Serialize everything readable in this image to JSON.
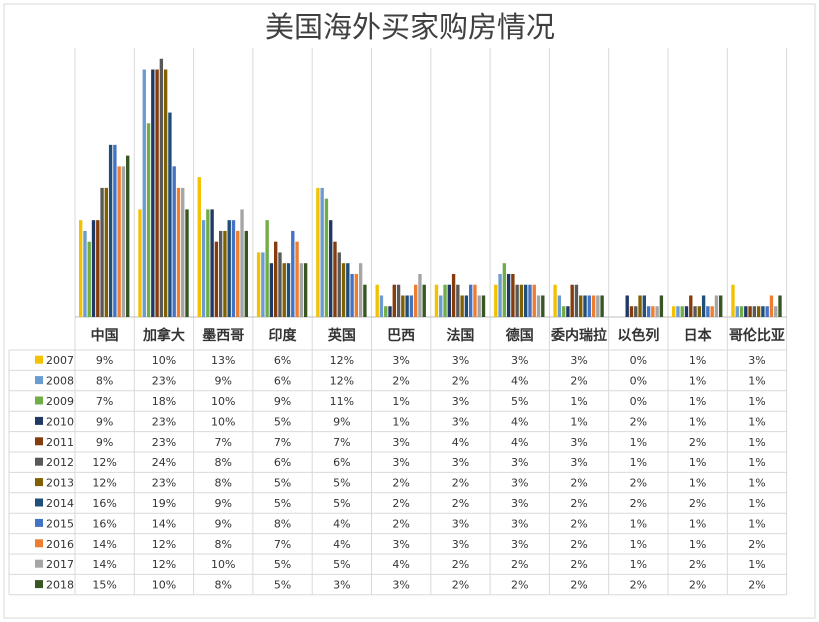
{
  "chart_data": {
    "type": "bar",
    "title": "美国海外买家购房情况",
    "categories": [
      "中国",
      "加拿大",
      "墨西哥",
      "印度",
      "英国",
      "巴西",
      "法国",
      "德国",
      "委内瑞拉",
      "以色列",
      "日本",
      "哥伦比亚"
    ],
    "grid": "vertical category separators and data table with legend keys",
    "series": [
      {
        "name": "2007",
        "color": "#f2c100",
        "values": [
          9,
          10,
          13,
          6,
          12,
          3,
          3,
          3,
          3,
          0,
          1,
          3
        ],
        "labels": [
          "9%",
          "10%",
          "13%",
          "6%",
          "12%",
          "3%",
          "3%",
          "3%",
          "3%",
          "0%",
          "1%",
          "3%"
        ]
      },
      {
        "name": "2008",
        "color": "#6a9bd1",
        "values": [
          8,
          23,
          9,
          6,
          12,
          2,
          2,
          4,
          2,
          0,
          1,
          1
        ],
        "labels": [
          "8%",
          "23%",
          "9%",
          "6%",
          "12%",
          "2%",
          "2%",
          "4%",
          "2%",
          "0%",
          "1%",
          "1%"
        ]
      },
      {
        "name": "2009",
        "color": "#70ad47",
        "values": [
          7,
          18,
          10,
          9,
          11,
          1,
          3,
          5,
          1,
          0,
          1,
          1
        ],
        "labels": [
          "7%",
          "18%",
          "10%",
          "9%",
          "11%",
          "1%",
          "3%",
          "5%",
          "1%",
          "0%",
          "1%",
          "1%"
        ]
      },
      {
        "name": "2010",
        "color": "#203864",
        "values": [
          9,
          23,
          10,
          5,
          9,
          1,
          3,
          4,
          1,
          2,
          1,
          1
        ],
        "labels": [
          "9%",
          "23%",
          "10%",
          "5%",
          "9%",
          "1%",
          "3%",
          "4%",
          "1%",
          "2%",
          "1%",
          "1%"
        ]
      },
      {
        "name": "2011",
        "color": "#843c0c",
        "values": [
          9,
          23,
          7,
          7,
          7,
          3,
          4,
          4,
          3,
          1,
          2,
          1
        ],
        "labels": [
          "9%",
          "23%",
          "7%",
          "7%",
          "7%",
          "3%",
          "4%",
          "4%",
          "3%",
          "1%",
          "2%",
          "1%"
        ]
      },
      {
        "name": "2012",
        "color": "#595959",
        "values": [
          12,
          24,
          8,
          6,
          6,
          3,
          3,
          3,
          3,
          1,
          1,
          1
        ],
        "labels": [
          "12%",
          "24%",
          "8%",
          "6%",
          "6%",
          "3%",
          "3%",
          "3%",
          "3%",
          "1%",
          "1%",
          "1%"
        ]
      },
      {
        "name": "2013",
        "color": "#806000",
        "values": [
          12,
          23,
          8,
          5,
          5,
          2,
          2,
          3,
          2,
          2,
          1,
          1
        ],
        "labels": [
          "12%",
          "23%",
          "8%",
          "5%",
          "5%",
          "2%",
          "2%",
          "3%",
          "2%",
          "2%",
          "1%",
          "1%"
        ]
      },
      {
        "name": "2014",
        "color": "#1f4e79",
        "values": [
          16,
          19,
          9,
          5,
          5,
          2,
          2,
          3,
          2,
          2,
          2,
          1
        ],
        "labels": [
          "16%",
          "19%",
          "9%",
          "5%",
          "5%",
          "2%",
          "2%",
          "3%",
          "2%",
          "2%",
          "2%",
          "1%"
        ]
      },
      {
        "name": "2015",
        "color": "#4472c4",
        "values": [
          16,
          14,
          9,
          8,
          4,
          2,
          3,
          3,
          2,
          1,
          1,
          1
        ],
        "labels": [
          "16%",
          "14%",
          "9%",
          "8%",
          "4%",
          "2%",
          "3%",
          "3%",
          "2%",
          "1%",
          "1%",
          "1%"
        ]
      },
      {
        "name": "2016",
        "color": "#ed7d31",
        "values": [
          14,
          12,
          8,
          7,
          4,
          3,
          3,
          3,
          2,
          1,
          1,
          2
        ],
        "labels": [
          "14%",
          "12%",
          "8%",
          "7%",
          "4%",
          "3%",
          "3%",
          "3%",
          "2%",
          "1%",
          "1%",
          "2%"
        ]
      },
      {
        "name": "2017",
        "color": "#a5a5a5",
        "values": [
          14,
          12,
          10,
          5,
          5,
          4,
          2,
          2,
          2,
          1,
          2,
          1
        ],
        "labels": [
          "14%",
          "12%",
          "10%",
          "5%",
          "5%",
          "4%",
          "2%",
          "2%",
          "2%",
          "1%",
          "2%",
          "1%"
        ]
      },
      {
        "name": "2018",
        "color": "#375623",
        "values": [
          15,
          10,
          8,
          5,
          3,
          3,
          2,
          2,
          2,
          2,
          2,
          2
        ],
        "labels": [
          "15%",
          "10%",
          "8%",
          "5%",
          "3%",
          "3%",
          "2%",
          "2%",
          "2%",
          "2%",
          "2%",
          "2%"
        ]
      }
    ],
    "ylim": [
      0,
      25
    ]
  }
}
